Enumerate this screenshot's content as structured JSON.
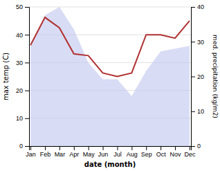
{
  "chart_data": {
    "type": "line",
    "categories": [
      "Jan",
      "Feb",
      "Mar",
      "Apr",
      "May",
      "Jun",
      "Jul",
      "Aug",
      "Sep",
      "Oct",
      "Nov",
      "Dec"
    ],
    "series": [
      {
        "type": "area",
        "color": "#c5caf0",
        "values": [
          36,
          47,
          50,
          42,
          30,
          24,
          24,
          18,
          27,
          34,
          35,
          36
        ]
      },
      {
        "type": "line",
        "color": "#b03030",
        "axis": "y2",
        "values": [
          29,
          37,
          34,
          26.5,
          26,
          21,
          20,
          21,
          32,
          32,
          31,
          36
        ]
      }
    ],
    "x_label": "date (month)",
    "y_label": "max temp (C)",
    "y2_label": "med. precipitation (kg/m2)",
    "ylim": [
      0,
      50
    ],
    "yticks": [
      0,
      10,
      20,
      30,
      40,
      50
    ],
    "y2lim": [
      0,
      40
    ],
    "y2ticks": [
      0,
      10,
      20,
      30,
      40
    ],
    "grid": true
  }
}
